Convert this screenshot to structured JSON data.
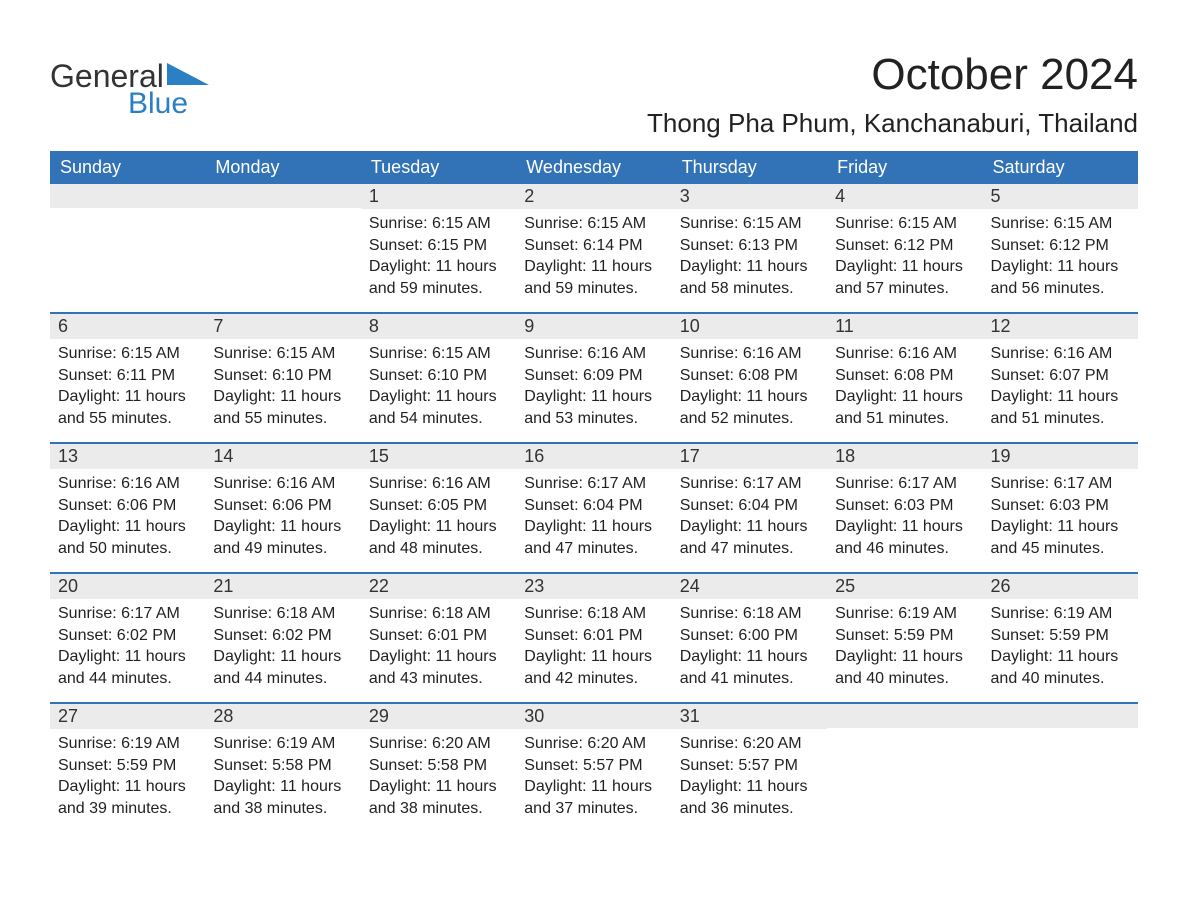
{
  "logo": {
    "text_general": "General",
    "text_blue": "Blue",
    "triangle_color": "#2b7fc3"
  },
  "title": "October 2024",
  "location": "Thong Pha Phum, Kanchanaburi, Thailand",
  "colors": {
    "header_bg": "#3273b8",
    "header_text": "#ffffff",
    "daynum_bg": "#ebebeb",
    "week_border": "#3273b8",
    "text": "#222222",
    "logo_blue": "#2b7fc3",
    "logo_dark": "#333333",
    "page_bg": "#ffffff"
  },
  "typography": {
    "title_fontsize": 44,
    "location_fontsize": 26,
    "dayheader_fontsize": 18,
    "daynum_fontsize": 18,
    "body_fontsize": 16
  },
  "day_headers": [
    "Sunday",
    "Monday",
    "Tuesday",
    "Wednesday",
    "Thursday",
    "Friday",
    "Saturday"
  ],
  "weeks": [
    [
      {
        "day": "",
        "sunrise": "",
        "sunset": "",
        "daylight": ""
      },
      {
        "day": "",
        "sunrise": "",
        "sunset": "",
        "daylight": ""
      },
      {
        "day": "1",
        "sunrise": "Sunrise: 6:15 AM",
        "sunset": "Sunset: 6:15 PM",
        "daylight": "Daylight: 11 hours and 59 minutes."
      },
      {
        "day": "2",
        "sunrise": "Sunrise: 6:15 AM",
        "sunset": "Sunset: 6:14 PM",
        "daylight": "Daylight: 11 hours and 59 minutes."
      },
      {
        "day": "3",
        "sunrise": "Sunrise: 6:15 AM",
        "sunset": "Sunset: 6:13 PM",
        "daylight": "Daylight: 11 hours and 58 minutes."
      },
      {
        "day": "4",
        "sunrise": "Sunrise: 6:15 AM",
        "sunset": "Sunset: 6:12 PM",
        "daylight": "Daylight: 11 hours and 57 minutes."
      },
      {
        "day": "5",
        "sunrise": "Sunrise: 6:15 AM",
        "sunset": "Sunset: 6:12 PM",
        "daylight": "Daylight: 11 hours and 56 minutes."
      }
    ],
    [
      {
        "day": "6",
        "sunrise": "Sunrise: 6:15 AM",
        "sunset": "Sunset: 6:11 PM",
        "daylight": "Daylight: 11 hours and 55 minutes."
      },
      {
        "day": "7",
        "sunrise": "Sunrise: 6:15 AM",
        "sunset": "Sunset: 6:10 PM",
        "daylight": "Daylight: 11 hours and 55 minutes."
      },
      {
        "day": "8",
        "sunrise": "Sunrise: 6:15 AM",
        "sunset": "Sunset: 6:10 PM",
        "daylight": "Daylight: 11 hours and 54 minutes."
      },
      {
        "day": "9",
        "sunrise": "Sunrise: 6:16 AM",
        "sunset": "Sunset: 6:09 PM",
        "daylight": "Daylight: 11 hours and 53 minutes."
      },
      {
        "day": "10",
        "sunrise": "Sunrise: 6:16 AM",
        "sunset": "Sunset: 6:08 PM",
        "daylight": "Daylight: 11 hours and 52 minutes."
      },
      {
        "day": "11",
        "sunrise": "Sunrise: 6:16 AM",
        "sunset": "Sunset: 6:08 PM",
        "daylight": "Daylight: 11 hours and 51 minutes."
      },
      {
        "day": "12",
        "sunrise": "Sunrise: 6:16 AM",
        "sunset": "Sunset: 6:07 PM",
        "daylight": "Daylight: 11 hours and 51 minutes."
      }
    ],
    [
      {
        "day": "13",
        "sunrise": "Sunrise: 6:16 AM",
        "sunset": "Sunset: 6:06 PM",
        "daylight": "Daylight: 11 hours and 50 minutes."
      },
      {
        "day": "14",
        "sunrise": "Sunrise: 6:16 AM",
        "sunset": "Sunset: 6:06 PM",
        "daylight": "Daylight: 11 hours and 49 minutes."
      },
      {
        "day": "15",
        "sunrise": "Sunrise: 6:16 AM",
        "sunset": "Sunset: 6:05 PM",
        "daylight": "Daylight: 11 hours and 48 minutes."
      },
      {
        "day": "16",
        "sunrise": "Sunrise: 6:17 AM",
        "sunset": "Sunset: 6:04 PM",
        "daylight": "Daylight: 11 hours and 47 minutes."
      },
      {
        "day": "17",
        "sunrise": "Sunrise: 6:17 AM",
        "sunset": "Sunset: 6:04 PM",
        "daylight": "Daylight: 11 hours and 47 minutes."
      },
      {
        "day": "18",
        "sunrise": "Sunrise: 6:17 AM",
        "sunset": "Sunset: 6:03 PM",
        "daylight": "Daylight: 11 hours and 46 minutes."
      },
      {
        "day": "19",
        "sunrise": "Sunrise: 6:17 AM",
        "sunset": "Sunset: 6:03 PM",
        "daylight": "Daylight: 11 hours and 45 minutes."
      }
    ],
    [
      {
        "day": "20",
        "sunrise": "Sunrise: 6:17 AM",
        "sunset": "Sunset: 6:02 PM",
        "daylight": "Daylight: 11 hours and 44 minutes."
      },
      {
        "day": "21",
        "sunrise": "Sunrise: 6:18 AM",
        "sunset": "Sunset: 6:02 PM",
        "daylight": "Daylight: 11 hours and 44 minutes."
      },
      {
        "day": "22",
        "sunrise": "Sunrise: 6:18 AM",
        "sunset": "Sunset: 6:01 PM",
        "daylight": "Daylight: 11 hours and 43 minutes."
      },
      {
        "day": "23",
        "sunrise": "Sunrise: 6:18 AM",
        "sunset": "Sunset: 6:01 PM",
        "daylight": "Daylight: 11 hours and 42 minutes."
      },
      {
        "day": "24",
        "sunrise": "Sunrise: 6:18 AM",
        "sunset": "Sunset: 6:00 PM",
        "daylight": "Daylight: 11 hours and 41 minutes."
      },
      {
        "day": "25",
        "sunrise": "Sunrise: 6:19 AM",
        "sunset": "Sunset: 5:59 PM",
        "daylight": "Daylight: 11 hours and 40 minutes."
      },
      {
        "day": "26",
        "sunrise": "Sunrise: 6:19 AM",
        "sunset": "Sunset: 5:59 PM",
        "daylight": "Daylight: 11 hours and 40 minutes."
      }
    ],
    [
      {
        "day": "27",
        "sunrise": "Sunrise: 6:19 AM",
        "sunset": "Sunset: 5:59 PM",
        "daylight": "Daylight: 11 hours and 39 minutes."
      },
      {
        "day": "28",
        "sunrise": "Sunrise: 6:19 AM",
        "sunset": "Sunset: 5:58 PM",
        "daylight": "Daylight: 11 hours and 38 minutes."
      },
      {
        "day": "29",
        "sunrise": "Sunrise: 6:20 AM",
        "sunset": "Sunset: 5:58 PM",
        "daylight": "Daylight: 11 hours and 38 minutes."
      },
      {
        "day": "30",
        "sunrise": "Sunrise: 6:20 AM",
        "sunset": "Sunset: 5:57 PM",
        "daylight": "Daylight: 11 hours and 37 minutes."
      },
      {
        "day": "31",
        "sunrise": "Sunrise: 6:20 AM",
        "sunset": "Sunset: 5:57 PM",
        "daylight": "Daylight: 11 hours and 36 minutes."
      },
      {
        "day": "",
        "sunrise": "",
        "sunset": "",
        "daylight": ""
      },
      {
        "day": "",
        "sunrise": "",
        "sunset": "",
        "daylight": ""
      }
    ]
  ]
}
